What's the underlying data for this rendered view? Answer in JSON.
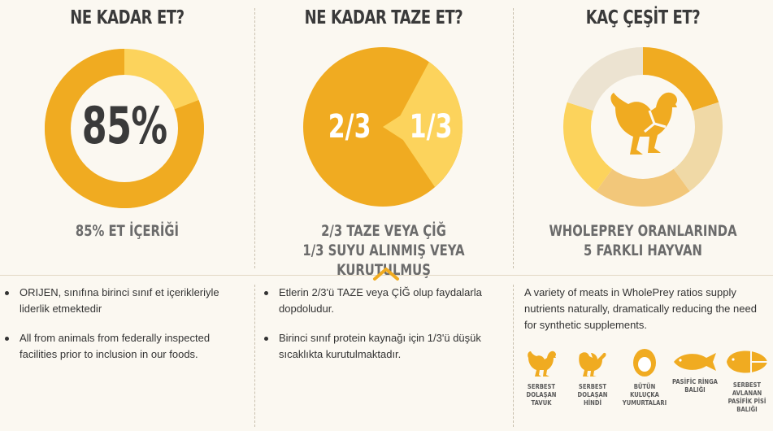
{
  "col1": {
    "heading": "NE KADAR ET?",
    "center_value": "85%",
    "caption": "85% ET İÇERİĞİ",
    "fraction": 0.85
  },
  "col2": {
    "heading": "NE KADAR TAZE ET?",
    "left_value": "2/3",
    "right_value": "1/3",
    "caption_line1": "2/3 TAZE VEYA ÇİĞ",
    "caption_line2": "1/3 SUYU ALINMIŞ VEYA KURUTULMUŞ"
  },
  "col3": {
    "heading": "KAÇ ÇEŞİT ET?",
    "caption_line1": "WHOLEPREY ORANLARINDA",
    "caption_line2": "5 FARKLI HAYVAN",
    "icon": "chicken-icon"
  },
  "bottom": {
    "col1_bullets": [
      "ORIJEN, sınıfına birinci sınıf et içerikleriyle liderlik etmektedir",
      "All from animals from federally inspected facilities prior to inclusion in our foods."
    ],
    "col2_bullets": [
      "Etlerin 2/3'ü TAZE veya ÇİĞ olup faydalarla dopdoludur.",
      "Birinci sınıf protein kaynağı için 1/3'ü düşük sıcaklıkta kurutulmaktadır."
    ],
    "col3_text": "A variety of meats in WholePrey ratios supply nutrients naturally, dramatically reducing the need for synthetic supplements.",
    "animals": [
      {
        "label": "SERBEST DOLAŞAN TAVUK",
        "icon": "chicken-icon"
      },
      {
        "label": "SERBEST DOLAŞAN HİNDİ",
        "icon": "turkey-icon"
      },
      {
        "label": "BÜTÜN KULUÇKA YUMURTALARI",
        "icon": "egg-icon"
      },
      {
        "label": "PASİFİC RİNGA BALIĞI",
        "icon": "herring-icon"
      },
      {
        "label": "SERBEST AVLANAN PASİFİK PİSİ BALIĞI",
        "icon": "flounder-icon"
      }
    ]
  },
  "colors": {
    "orange": "#f0ab21",
    "yellow": "#fcd35c",
    "tan": "#f0d9a6",
    "light": "#ece3d1",
    "dark_text": "#3a3a3a",
    "grey_text": "#6b6b6b"
  }
}
